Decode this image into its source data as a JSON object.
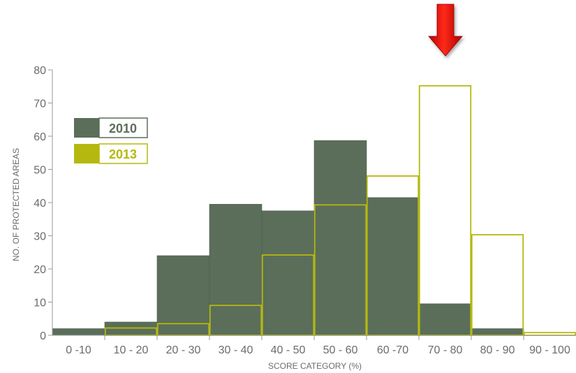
{
  "chart_data": {
    "type": "bar",
    "categories": [
      "0 -10",
      "10 - 20",
      "20 - 30",
      "30 - 40",
      "40 - 50",
      "50 - 60",
      "60 -70",
      "70 - 80",
      "80 - 90",
      "90 - 100"
    ],
    "series": [
      {
        "name": "2010",
        "values": [
          2,
          4,
          24,
          39.5,
          37.5,
          58.7,
          41.5,
          9.5,
          2,
          0
        ],
        "color": "#5b6e5a",
        "style": "filled"
      },
      {
        "name": "2013",
        "values": [
          0,
          2.2,
          3.5,
          9,
          24.2,
          39.3,
          48,
          75.2,
          30.3,
          0.8
        ],
        "color": "#b5b80f",
        "style": "outline"
      }
    ],
    "title": "",
    "xlabel": "SCORE CATEGORY (%)",
    "ylabel": "NO. OF PROTECTED AREAS",
    "ylim": [
      0,
      80
    ],
    "yticks": [
      0,
      10,
      20,
      30,
      40,
      50,
      60,
      70,
      80
    ],
    "grid": false,
    "legend_position": "top-left",
    "highlight": {
      "category": "70 - 80",
      "marker": "down-arrow-icon",
      "color": "#e01010"
    }
  }
}
